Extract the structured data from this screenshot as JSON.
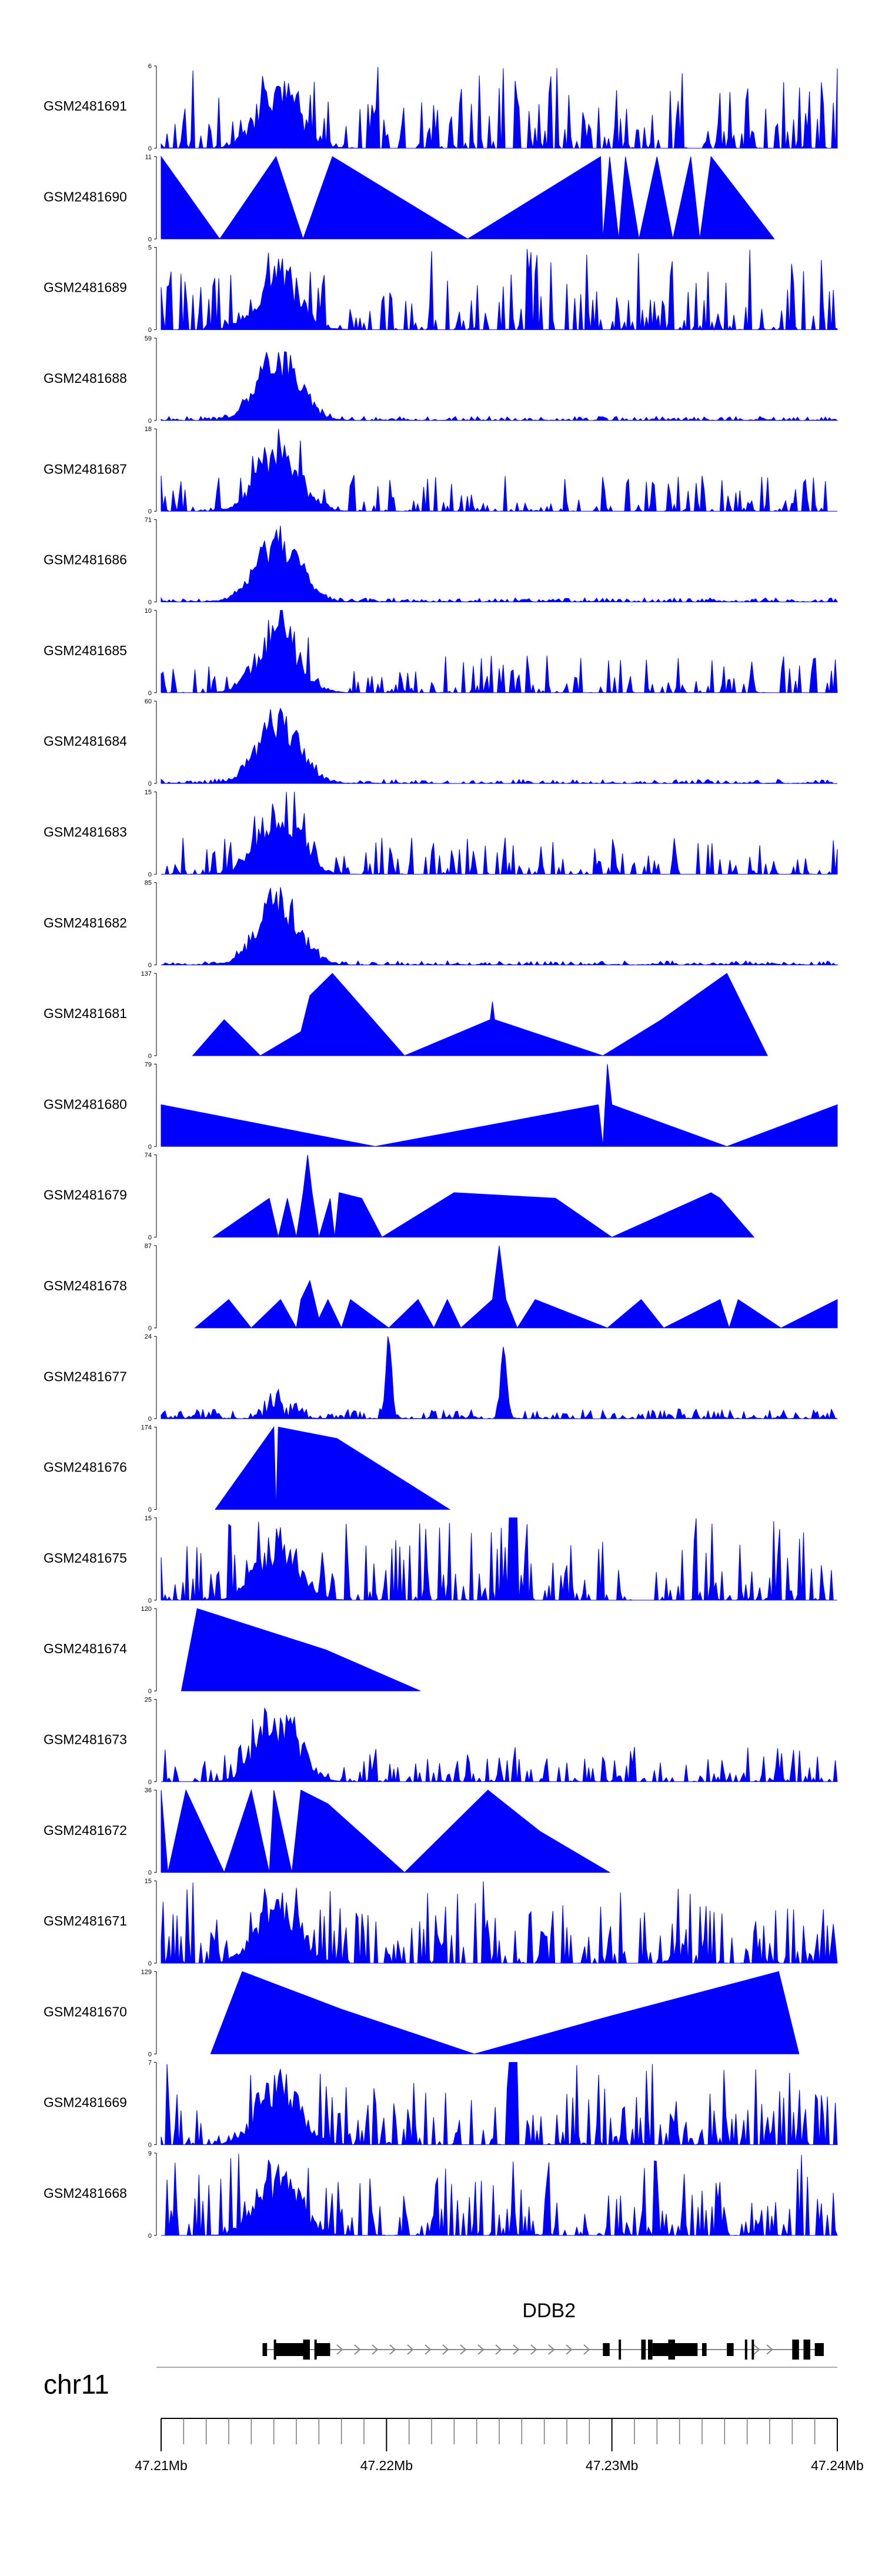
{
  "chart_data": {
    "type": "area",
    "description_note": "genome browser coverage tracks",
    "chromosome": "chr11",
    "x_range_mb": [
      47.21,
      47.24
    ],
    "x_axis_ticks": [
      "47.21Mb",
      "47.22Mb",
      "47.23Mb",
      "47.24Mb"
    ],
    "gene": {
      "name": "DDB2",
      "start_mb": 47.2145,
      "end_mb": 47.2394,
      "strand": "+"
    },
    "fill_color": "#0000ff",
    "tracks": [
      {
        "name": "GSM2481691",
        "ymax": 6,
        "pattern": "spiky",
        "seed": 11
      },
      {
        "name": "GSM2481690",
        "ymax": 11,
        "pattern": "points",
        "points": [
          [
            47.21,
            0
          ],
          [
            47.21,
            11
          ],
          [
            47.2126,
            0
          ],
          [
            47.2151,
            11
          ],
          [
            47.2163,
            0
          ],
          [
            47.2176,
            11
          ],
          [
            47.2236,
            0
          ],
          [
            47.2295,
            11
          ],
          [
            47.2296,
            0
          ],
          [
            47.2299,
            11
          ],
          [
            47.2303,
            0
          ],
          [
            47.2306,
            11
          ],
          [
            47.2312,
            0
          ],
          [
            47.232,
            11
          ],
          [
            47.2327,
            0
          ],
          [
            47.2335,
            11
          ],
          [
            47.2339,
            0
          ],
          [
            47.2344,
            11
          ],
          [
            47.2372,
            0
          ]
        ]
      },
      {
        "name": "GSM2481689",
        "ymax": 5,
        "pattern": "spiky",
        "seed": 23
      },
      {
        "name": "GSM2481688",
        "ymax": 59,
        "pattern": "peak",
        "seed": 31
      },
      {
        "name": "GSM2481687",
        "ymax": 18,
        "pattern": "peakspiky",
        "seed": 37
      },
      {
        "name": "GSM2481686",
        "ymax": 71,
        "pattern": "peak",
        "seed": 41
      },
      {
        "name": "GSM2481685",
        "ymax": 10,
        "pattern": "peakspiky",
        "seed": 43
      },
      {
        "name": "GSM2481684",
        "ymax": 60,
        "pattern": "peak",
        "seed": 47
      },
      {
        "name": "GSM2481683",
        "ymax": 15,
        "pattern": "peakspiky",
        "seed": 53
      },
      {
        "name": "GSM2481682",
        "ymax": 85,
        "pattern": "peak",
        "seed": 59
      },
      {
        "name": "GSM2481681",
        "ymax": 137,
        "pattern": "points",
        "points": [
          [
            47.2114,
            0
          ],
          [
            47.2128,
            60
          ],
          [
            47.2144,
            0
          ],
          [
            47.2162,
            40
          ],
          [
            47.2166,
            100
          ],
          [
            47.2176,
            137
          ],
          [
            47.2208,
            0
          ],
          [
            47.2246,
            60
          ],
          [
            47.2247,
            90
          ],
          [
            47.2248,
            60
          ],
          [
            47.2296,
            0
          ],
          [
            47.2322,
            60
          ],
          [
            47.2351,
            137
          ],
          [
            47.2369,
            0
          ]
        ]
      },
      {
        "name": "GSM2481680",
        "ymax": 79,
        "pattern": "points",
        "points": [
          [
            47.21,
            0
          ],
          [
            47.21,
            40
          ],
          [
            47.2195,
            0
          ],
          [
            47.2294,
            40
          ],
          [
            47.2296,
            0
          ],
          [
            47.2298,
            79
          ],
          [
            47.23,
            40
          ],
          [
            47.2351,
            0
          ],
          [
            47.24,
            40
          ],
          [
            47.24,
            0
          ]
        ]
      },
      {
        "name": "GSM2481679",
        "ymax": 74,
        "pattern": "points",
        "points": [
          [
            47.2123,
            0
          ],
          [
            47.2148,
            35
          ],
          [
            47.2152,
            0
          ],
          [
            47.2156,
            35
          ],
          [
            47.216,
            0
          ],
          [
            47.2163,
            40
          ],
          [
            47.2165,
            74
          ],
          [
            47.2167,
            40
          ],
          [
            47.217,
            0
          ],
          [
            47.2175,
            35
          ],
          [
            47.2177,
            0
          ],
          [
            47.2179,
            40
          ],
          [
            47.2189,
            35
          ],
          [
            47.2198,
            0
          ],
          [
            47.223,
            40
          ],
          [
            47.2275,
            35
          ],
          [
            47.23,
            0
          ],
          [
            47.2344,
            40
          ],
          [
            47.2348,
            35
          ],
          [
            47.2363,
            0
          ]
        ]
      },
      {
        "name": "GSM2481678",
        "ymax": 87,
        "pattern": "points",
        "points": [
          [
            47.2115,
            0
          ],
          [
            47.213,
            30
          ],
          [
            47.214,
            0
          ],
          [
            47.2153,
            30
          ],
          [
            47.216,
            0
          ],
          [
            47.2162,
            30
          ],
          [
            47.2166,
            50
          ],
          [
            47.217,
            10
          ],
          [
            47.2174,
            30
          ],
          [
            47.218,
            0
          ],
          [
            47.2184,
            30
          ],
          [
            47.2201,
            0
          ],
          [
            47.2214,
            30
          ],
          [
            47.2221,
            0
          ],
          [
            47.2227,
            30
          ],
          [
            47.2233,
            0
          ],
          [
            47.2247,
            30
          ],
          [
            47.225,
            87
          ],
          [
            47.2253,
            30
          ],
          [
            47.2258,
            0
          ],
          [
            47.2266,
            30
          ],
          [
            47.2298,
            0
          ],
          [
            47.2313,
            30
          ],
          [
            47.2323,
            0
          ],
          [
            47.2348,
            30
          ],
          [
            47.2352,
            0
          ],
          [
            47.2356,
            30
          ],
          [
            47.2375,
            0
          ],
          [
            47.24,
            30
          ],
          [
            47.24,
            0
          ]
        ]
      },
      {
        "name": "GSM2481677",
        "ymax": 24,
        "pattern": "twopeaks",
        "seed": 61
      },
      {
        "name": "GSM2481676",
        "ymax": 174,
        "pattern": "points",
        "points": [
          [
            47.2124,
            0
          ],
          [
            47.215,
            174
          ],
          [
            47.2151,
            0
          ],
          [
            47.2152,
            174
          ],
          [
            47.2178,
            150
          ],
          [
            47.2228,
            0
          ]
        ]
      },
      {
        "name": "GSM2481675",
        "ymax": 15,
        "pattern": "spiky",
        "seed": 67,
        "extra_peak": 47.2256
      },
      {
        "name": "GSM2481674",
        "ymax": 120,
        "pattern": "points",
        "points": [
          [
            47.2109,
            0
          ],
          [
            47.2116,
            120
          ],
          [
            47.2173,
            60
          ],
          [
            47.2215,
            0
          ]
        ]
      },
      {
        "name": "GSM2481673",
        "ymax": 25,
        "pattern": "peakspiky",
        "seed": 71
      },
      {
        "name": "GSM2481672",
        "ymax": 36,
        "pattern": "points",
        "points": [
          [
            47.21,
            0
          ],
          [
            47.21,
            36
          ],
          [
            47.2103,
            0
          ],
          [
            47.2111,
            36
          ],
          [
            47.2128,
            0
          ],
          [
            47.214,
            36
          ],
          [
            47.2148,
            0
          ],
          [
            47.215,
            36
          ],
          [
            47.2158,
            0
          ],
          [
            47.2162,
            36
          ],
          [
            47.2174,
            30
          ],
          [
            47.2208,
            0
          ],
          [
            47.2245,
            36
          ],
          [
            47.2268,
            18
          ],
          [
            47.2299,
            0
          ]
        ]
      },
      {
        "name": "GSM2481671",
        "ymax": 15,
        "pattern": "spiky",
        "seed": 73
      },
      {
        "name": "GSM2481670",
        "ymax": 129,
        "pattern": "points",
        "points": [
          [
            47.2122,
            0
          ],
          [
            47.2136,
            129
          ],
          [
            47.218,
            70
          ],
          [
            47.2239,
            0
          ],
          [
            47.23,
            60
          ],
          [
            47.2374,
            129
          ],
          [
            47.2383,
            0
          ]
        ]
      },
      {
        "name": "GSM2481669",
        "ymax": 7,
        "pattern": "spiky",
        "seed": 79,
        "extra_peak": 47.2256
      },
      {
        "name": "GSM2481668",
        "ymax": 9,
        "pattern": "spiky",
        "seed": 83
      }
    ]
  }
}
